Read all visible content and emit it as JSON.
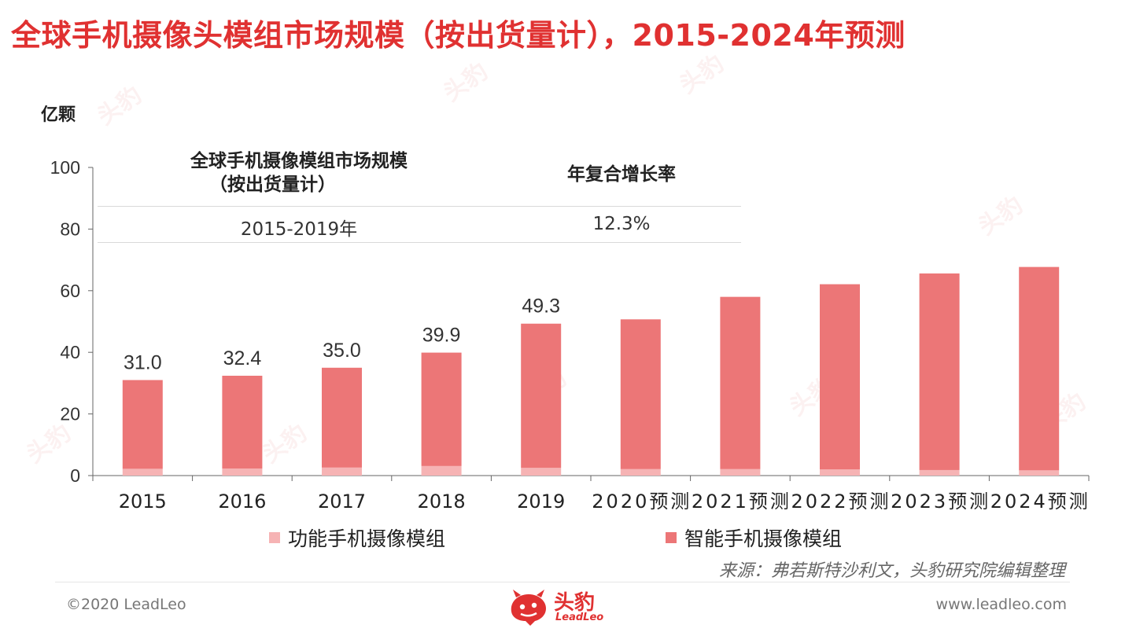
{
  "page": {
    "title": "全球手机摄像头模组市场规模（按出货量计），2015-2024年预测",
    "y_unit": "亿颗",
    "source": "来源：弗若斯特沙利文，头豹研究院编辑整理",
    "copyright": "©2020 LeadLeo",
    "website": "www.leadleo.com",
    "brand_name": "头豹",
    "brand_sub": "LeadLeo",
    "watermark_text": "头豹"
  },
  "inset_table": {
    "col1_header_line1": "全球手机摄像模组市场规模",
    "col1_header_line2": "（按出货量计）",
    "col2_header": "年复合增长率",
    "col1_value": "2015-2019年",
    "col2_value": "12.3%"
  },
  "colors": {
    "title": "#e03131",
    "smart": "#ec7677",
    "feature": "#f6b3b4",
    "axis": "#555555"
  },
  "chart_data": {
    "type": "bar",
    "stacked": true,
    "categories": [
      "2015",
      "2016",
      "2017",
      "2018",
      "2019",
      "2020预测",
      "2021预测",
      "2022预测",
      "2023预测",
      "2024预测"
    ],
    "series": [
      {
        "name": "功能手机摄像模组",
        "color": "#f6b3b4",
        "values": [
          2.2,
          2.3,
          2.6,
          3.1,
          2.5,
          2.1,
          2.1,
          2.0,
          1.8,
          1.7
        ]
      },
      {
        "name": "智能手机摄像模组",
        "color": "#ec7677",
        "values": [
          28.8,
          30.1,
          32.4,
          36.8,
          46.8,
          48.6,
          55.9,
          60.1,
          63.8,
          66.0
        ]
      }
    ],
    "totals": [
      31.0,
      32.4,
      35.0,
      39.9,
      49.3,
      50.7,
      58.0,
      62.1,
      65.6,
      67.7
    ],
    "data_labels": [
      "31.0",
      "32.4",
      "35.0",
      "39.9",
      "49.3",
      "",
      "",
      "",
      "",
      ""
    ],
    "ylim": [
      0,
      100
    ],
    "yticks": [
      0,
      20,
      40,
      60,
      80,
      100
    ],
    "ylabel": "亿颗",
    "xlabel": "",
    "legend_position": "bottom",
    "grid": false
  }
}
